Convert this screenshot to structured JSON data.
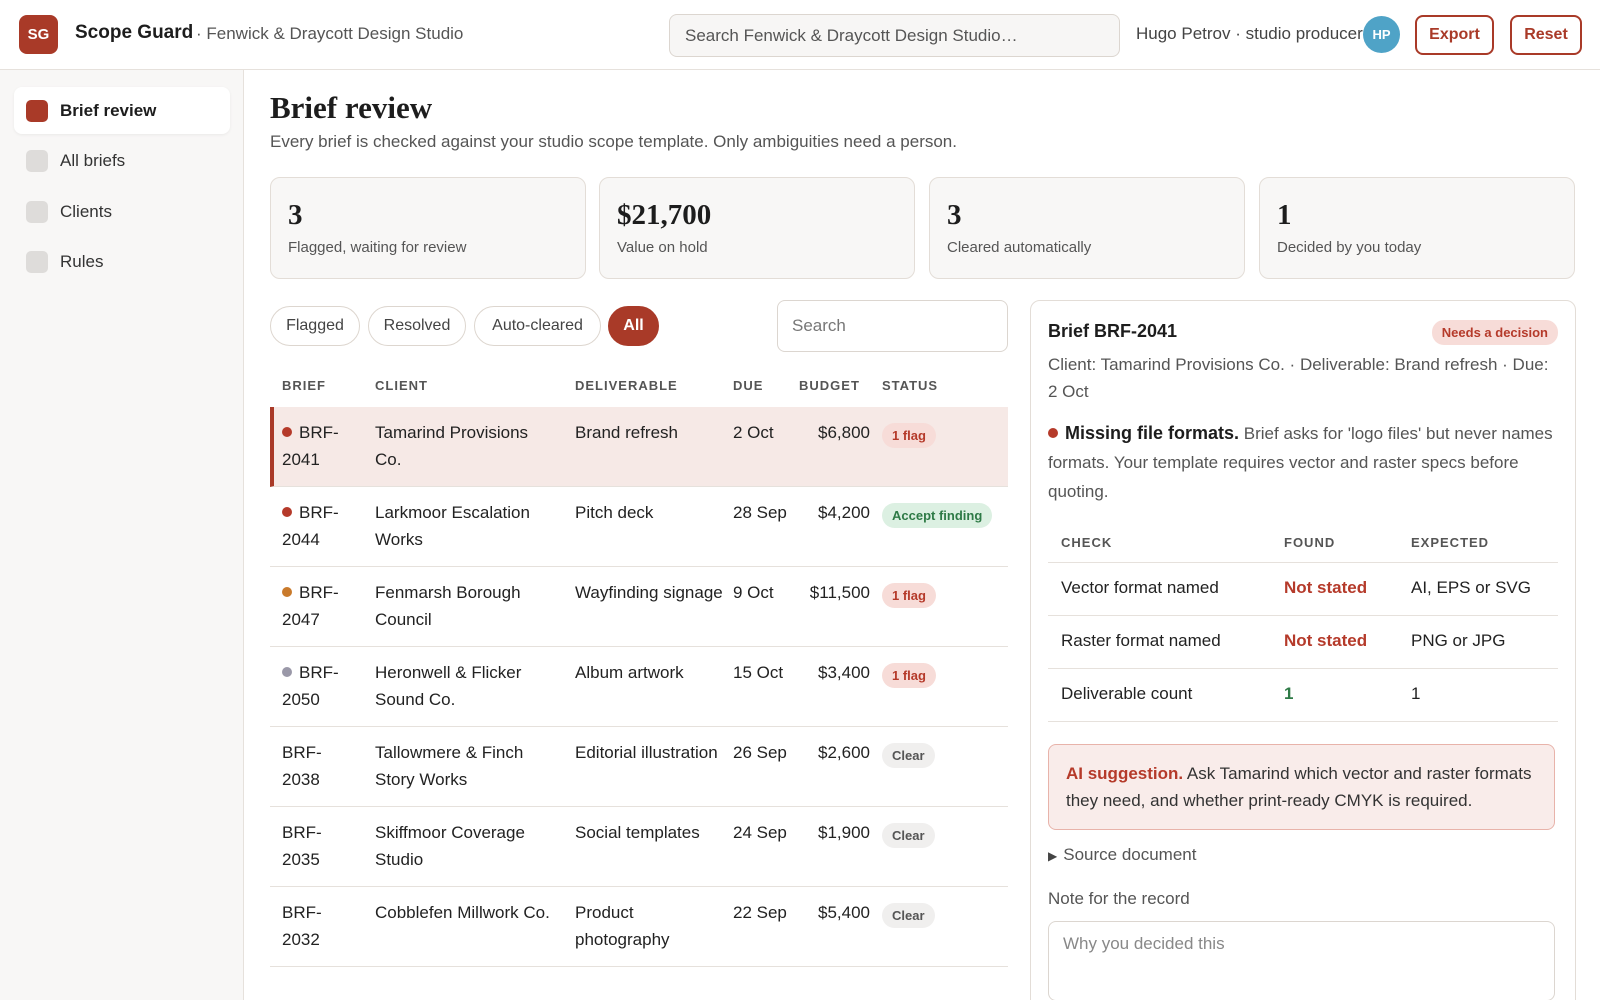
{
  "header": {
    "logo_text": "SG",
    "app_name": "Scope Guard",
    "studio": "· Fenwick & Draycott Design Studio",
    "search_placeholder": "Search Fenwick & Draycott Design Studio…",
    "user": "Hugo Petrov · studio producer",
    "avatar": "HP",
    "export_label": "Export",
    "reset_label": "Reset"
  },
  "sidebar": {
    "items": [
      {
        "label": "Brief review"
      },
      {
        "label": "All briefs"
      },
      {
        "label": "Clients"
      },
      {
        "label": "Rules"
      }
    ]
  },
  "page": {
    "title": "Brief review",
    "subtitle": "Every brief is checked against your studio scope template. Only ambiguities need a person."
  },
  "stats": [
    {
      "value": "3",
      "label": "Flagged, waiting for review"
    },
    {
      "value": "$21,700",
      "label": "Value on hold"
    },
    {
      "value": "3",
      "label": "Cleared automatically"
    },
    {
      "value": "1",
      "label": "Decided by you today"
    }
  ],
  "filters": {
    "chips": [
      "Flagged",
      "Resolved",
      "Auto-cleared",
      "All"
    ],
    "search_placeholder": "Search"
  },
  "table": {
    "headers": [
      "BRIEF",
      "CLIENT",
      "DELIVERABLE",
      "DUE",
      "BUDGET",
      "STATUS"
    ],
    "rows": [
      {
        "brief": "BRF-2041",
        "client": "Tamarind Provisions Co.",
        "deliverable": "Brand refresh",
        "due": "2 Oct",
        "budget": "$6,800",
        "status": "1 flag"
      },
      {
        "brief": "BRF-2044",
        "client": "Larkmoor Escalation Works",
        "deliverable": "Pitch deck",
        "due": "28 Sep",
        "budget": "$4,200",
        "status": "Accept finding"
      },
      {
        "brief": "BRF-2047",
        "client": "Fenmarsh Borough Council",
        "deliverable": "Wayfinding signage",
        "due": "9 Oct",
        "budget": "$11,500",
        "status": "1 flag"
      },
      {
        "brief": "BRF-2050",
        "client": "Heronwell & Flicker Sound Co.",
        "deliverable": "Album artwork",
        "due": "15 Oct",
        "budget": "$3,400",
        "status": "1 flag"
      },
      {
        "brief": "BRF-2038",
        "client": "Tallowmere & Finch Story Works",
        "deliverable": "Editorial illustration",
        "due": "26 Sep",
        "budget": "$2,600",
        "status": "Clear"
      },
      {
        "brief": "BRF-2035",
        "client": "Skiffmoor Coverage Studio",
        "deliverable": "Social templates",
        "due": "24 Sep",
        "budget": "$1,900",
        "status": "Clear"
      },
      {
        "brief": "BRF-2032",
        "client": "Cobblefen Millwork Co.",
        "deliverable": "Product photography",
        "due": "22 Sep",
        "budget": "$5,400",
        "status": "Clear"
      }
    ]
  },
  "detail": {
    "title": "Brief BRF-2041",
    "badge": "Needs a decision",
    "meta": "Client: Tamarind Provisions Co. · Deliverable: Brand refresh · Due: 2 Oct",
    "finding_title": "Missing file formats.",
    "finding_text": "Brief asks for 'logo files' but never names formats. Your template requires vector and raster specs before quoting.",
    "check_headers": [
      "CHECK",
      "FOUND",
      "EXPECTED"
    ],
    "checks": [
      {
        "check": "Vector format named",
        "found": "Not stated",
        "expected": "AI, EPS or SVG"
      },
      {
        "check": "Raster format named",
        "found": "Not stated",
        "expected": "PNG or JPG"
      },
      {
        "check": "Deliverable count",
        "found": "1",
        "expected": "1"
      }
    ],
    "ai_label": "AI suggestion.",
    "ai_text": "Ask Tamarind which vector and raster formats they need, and whether print-ready CMYK is required.",
    "source_label": "Source document",
    "note_label": "Note for the record",
    "note_placeholder": "Why you decided this"
  },
  "colors": {
    "accent": "#a93a28",
    "flag_red": "#b53a2a",
    "flag_orange": "#c97a2b",
    "flag_gray": "#9a98a8",
    "success_green": "#2e7a46"
  }
}
